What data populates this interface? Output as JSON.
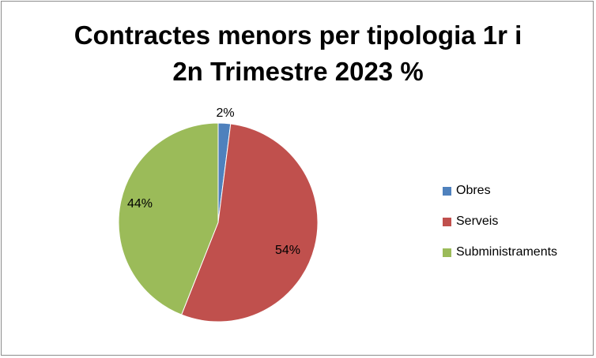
{
  "chart_data": {
    "type": "pie",
    "title_lines": [
      "Contractes menors per tipologia 1r i",
      "2n Trimestre 2023 %"
    ],
    "legend_position": "right",
    "slices": [
      {
        "name": "Obres",
        "value": 2,
        "label": "2%",
        "color": "#4f81bd"
      },
      {
        "name": "Serveis",
        "value": 54,
        "label": "54%",
        "color": "#c0504d"
      },
      {
        "name": "Subministraments",
        "value": 44,
        "label": "44%",
        "color": "#9bbb59"
      }
    ]
  }
}
